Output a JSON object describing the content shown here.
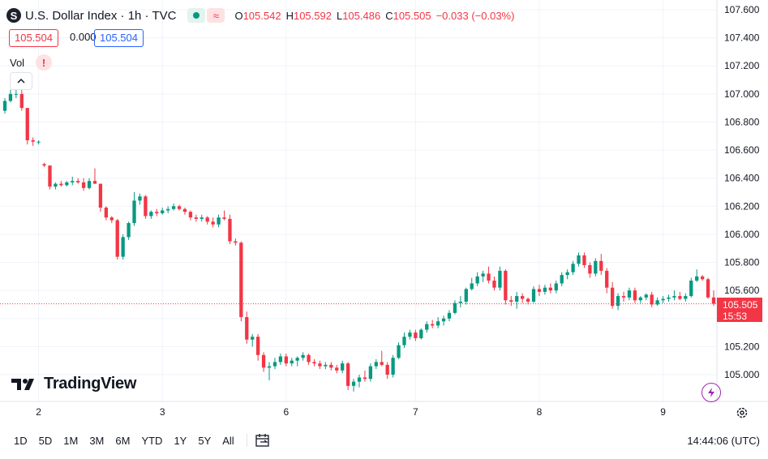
{
  "header": {
    "symbol_icon": "S",
    "title": "U.S. Dollar Index · 1h · TVC",
    "wave_icon": "≈",
    "ohlc": [
      {
        "k": "O",
        "v": "105.542"
      },
      {
        "k": "H",
        "v": "105.592"
      },
      {
        "k": "L",
        "v": "105.486"
      },
      {
        "k": "C",
        "v": "105.505"
      },
      {
        "k": "",
        "v": "−0.033 (−0.03%)"
      }
    ]
  },
  "quote": {
    "bid": "105.504",
    "spread": "0.000",
    "ask": "105.504"
  },
  "volume": {
    "label": "Vol",
    "warning": "!"
  },
  "logo_text": "TradingView",
  "last_price": {
    "price": "105.505",
    "countdown": "15:53"
  },
  "timeframes": [
    "1D",
    "5D",
    "1M",
    "3M",
    "6M",
    "YTD",
    "1Y",
    "5Y",
    "All"
  ],
  "clock": "14:44:06 (UTC)",
  "colors": {
    "up": "#089981",
    "down": "#f23645",
    "grid": "#f0f3fa"
  },
  "chart_data": {
    "type": "candlestick",
    "y_ticks": [
      "107.600",
      "107.400",
      "107.200",
      "107.000",
      "106.800",
      "106.600",
      "106.400",
      "106.200",
      "106.000",
      "105.800",
      "105.600",
      "105.400",
      "105.200",
      "105.000"
    ],
    "ylim": [
      104.87,
      107.65
    ],
    "x_ticks": [
      {
        "label": "2",
        "index": 6
      },
      {
        "label": "3",
        "index": 28
      },
      {
        "label": "6",
        "index": 50
      },
      {
        "label": "7",
        "index": 73
      },
      {
        "label": "8",
        "index": 95
      },
      {
        "label": "9",
        "index": 117
      }
    ],
    "last_value": 105.505,
    "candles": [
      [
        106.88,
        106.97,
        106.86,
        106.95
      ],
      [
        106.95,
        107.03,
        106.94,
        107.0
      ],
      [
        107.0,
        107.03,
        106.97,
        107.0
      ],
      [
        107.0,
        107.04,
        106.88,
        106.9
      ],
      [
        106.9,
        106.9,
        106.64,
        106.67
      ],
      [
        106.67,
        106.69,
        106.63,
        106.66
      ],
      [
        106.66,
        106.67,
        106.64,
        106.66
      ],
      [
        106.5,
        106.51,
        106.48,
        106.49
      ],
      [
        106.49,
        106.49,
        106.32,
        106.34
      ],
      [
        106.34,
        106.37,
        106.32,
        106.36
      ],
      [
        106.36,
        106.38,
        106.34,
        106.35
      ],
      [
        106.35,
        106.38,
        106.34,
        106.37
      ],
      [
        106.37,
        106.41,
        106.35,
        106.38
      ],
      [
        106.38,
        106.4,
        106.36,
        106.37
      ],
      [
        106.37,
        106.4,
        106.31,
        106.33
      ],
      [
        106.33,
        106.4,
        106.32,
        106.38
      ],
      [
        106.38,
        106.47,
        106.36,
        106.36
      ],
      [
        106.36,
        106.36,
        106.16,
        106.19
      ],
      [
        106.19,
        106.2,
        106.1,
        106.12
      ],
      [
        106.12,
        106.13,
        106.08,
        106.1
      ],
      [
        106.1,
        106.11,
        105.82,
        105.84
      ],
      [
        105.84,
        106.0,
        105.82,
        105.98
      ],
      [
        105.98,
        106.09,
        105.96,
        106.08
      ],
      [
        106.08,
        106.3,
        106.06,
        106.24
      ],
      [
        106.24,
        106.29,
        106.21,
        106.27
      ],
      [
        106.27,
        106.28,
        106.11,
        106.13
      ],
      [
        106.13,
        106.17,
        106.11,
        106.16
      ],
      [
        106.16,
        106.18,
        106.13,
        106.15
      ],
      [
        106.15,
        106.19,
        106.14,
        106.17
      ],
      [
        106.17,
        106.2,
        106.15,
        106.18
      ],
      [
        106.18,
        106.22,
        106.17,
        106.2
      ],
      [
        106.2,
        106.21,
        106.17,
        106.18
      ],
      [
        106.18,
        106.19,
        106.14,
        106.16
      ],
      [
        106.16,
        106.17,
        106.1,
        106.12
      ],
      [
        106.12,
        106.14,
        106.09,
        106.11
      ],
      [
        106.11,
        106.14,
        106.09,
        106.12
      ],
      [
        106.12,
        106.13,
        106.07,
        106.09
      ],
      [
        106.09,
        106.12,
        106.05,
        106.07
      ],
      [
        106.07,
        106.14,
        106.05,
        106.12
      ],
      [
        106.12,
        106.17,
        106.1,
        106.11
      ],
      [
        106.11,
        106.14,
        105.93,
        105.95
      ],
      [
        105.95,
        105.97,
        105.92,
        105.94
      ],
      [
        105.94,
        105.95,
        105.38,
        105.41
      ],
      [
        105.41,
        105.45,
        105.22,
        105.25
      ],
      [
        105.25,
        105.29,
        105.2,
        105.27
      ],
      [
        105.27,
        105.29,
        105.1,
        105.14
      ],
      [
        105.14,
        105.16,
        105.02,
        105.05
      ],
      [
        105.05,
        105.09,
        104.96,
        105.06
      ],
      [
        105.06,
        105.12,
        105.04,
        105.09
      ],
      [
        105.09,
        105.15,
        105.07,
        105.13
      ],
      [
        105.13,
        105.15,
        105.06,
        105.08
      ],
      [
        105.08,
        105.12,
        105.06,
        105.1
      ],
      [
        105.1,
        105.13,
        105.06,
        105.12
      ],
      [
        105.12,
        105.16,
        105.1,
        105.14
      ],
      [
        105.14,
        105.15,
        105.07,
        105.09
      ],
      [
        105.09,
        105.11,
        105.06,
        105.08
      ],
      [
        105.08,
        105.1,
        105.04,
        105.06
      ],
      [
        105.06,
        105.09,
        105.04,
        105.07
      ],
      [
        105.07,
        105.09,
        105.03,
        105.05
      ],
      [
        105.05,
        105.07,
        105.01,
        105.03
      ],
      [
        105.03,
        105.1,
        105.01,
        105.08
      ],
      [
        105.08,
        105.09,
        104.89,
        104.92
      ],
      [
        104.92,
        104.97,
        104.88,
        104.95
      ],
      [
        104.95,
        105.0,
        104.91,
        104.98
      ],
      [
        104.98,
        105.03,
        104.95,
        104.97
      ],
      [
        104.97,
        105.08,
        104.95,
        105.06
      ],
      [
        105.06,
        105.11,
        105.04,
        105.09
      ],
      [
        105.09,
        105.17,
        105.06,
        105.07
      ],
      [
        105.07,
        105.09,
        104.97,
        105.0
      ],
      [
        105.0,
        105.14,
        104.98,
        105.12
      ],
      [
        105.12,
        105.23,
        105.11,
        105.21
      ],
      [
        105.21,
        105.3,
        105.19,
        105.27
      ],
      [
        105.27,
        105.32,
        105.25,
        105.3
      ],
      [
        105.3,
        105.32,
        105.24,
        105.26
      ],
      [
        105.26,
        105.33,
        105.25,
        105.32
      ],
      [
        105.32,
        105.38,
        105.3,
        105.36
      ],
      [
        105.36,
        105.39,
        105.33,
        105.35
      ],
      [
        105.35,
        105.41,
        105.33,
        105.38
      ],
      [
        105.38,
        105.42,
        105.35,
        105.4
      ],
      [
        105.4,
        105.46,
        105.38,
        105.44
      ],
      [
        105.44,
        105.53,
        105.43,
        105.51
      ],
      [
        105.51,
        105.56,
        105.48,
        105.52
      ],
      [
        105.52,
        105.62,
        105.5,
        105.61
      ],
      [
        105.61,
        105.69,
        105.6,
        105.65
      ],
      [
        105.65,
        105.73,
        105.63,
        105.7
      ],
      [
        105.7,
        105.74,
        105.66,
        105.72
      ],
      [
        105.72,
        105.77,
        105.65,
        105.67
      ],
      [
        105.67,
        105.7,
        105.6,
        105.62
      ],
      [
        105.62,
        105.77,
        105.6,
        105.74
      ],
      [
        105.74,
        105.75,
        105.5,
        105.53
      ],
      [
        105.53,
        105.56,
        105.49,
        105.52
      ],
      [
        105.52,
        105.59,
        105.47,
        105.56
      ],
      [
        105.56,
        105.58,
        105.51,
        105.54
      ],
      [
        105.54,
        105.55,
        105.5,
        105.52
      ],
      [
        105.52,
        105.63,
        105.51,
        105.61
      ],
      [
        105.61,
        105.64,
        105.56,
        105.59
      ],
      [
        105.59,
        105.64,
        105.57,
        105.62
      ],
      [
        105.62,
        105.65,
        105.58,
        105.6
      ],
      [
        105.6,
        105.67,
        105.58,
        105.65
      ],
      [
        105.65,
        105.73,
        105.63,
        105.71
      ],
      [
        105.71,
        105.75,
        105.68,
        105.73
      ],
      [
        105.73,
        105.81,
        105.71,
        105.79
      ],
      [
        105.79,
        105.87,
        105.77,
        105.85
      ],
      [
        105.85,
        105.87,
        105.76,
        105.78
      ],
      [
        105.78,
        105.8,
        105.69,
        105.72
      ],
      [
        105.72,
        105.83,
        105.7,
        105.81
      ],
      [
        105.81,
        105.86,
        105.71,
        105.74
      ],
      [
        105.74,
        105.76,
        105.58,
        105.62
      ],
      [
        105.62,
        105.66,
        105.47,
        105.49
      ],
      [
        105.49,
        105.58,
        105.46,
        105.56
      ],
      [
        105.56,
        105.59,
        105.52,
        105.55
      ],
      [
        105.55,
        105.62,
        105.53,
        105.6
      ],
      [
        105.6,
        105.62,
        105.51,
        105.53
      ],
      [
        105.53,
        105.56,
        105.51,
        105.55
      ],
      [
        105.55,
        105.58,
        105.53,
        105.57
      ],
      [
        105.57,
        105.59,
        105.48,
        105.5
      ],
      [
        105.5,
        105.55,
        105.49,
        105.53
      ],
      [
        105.53,
        105.56,
        105.51,
        105.54
      ],
      [
        105.54,
        105.57,
        105.52,
        105.55
      ],
      [
        105.55,
        105.6,
        105.53,
        105.56
      ],
      [
        105.56,
        105.59,
        105.53,
        105.54
      ],
      [
        105.54,
        105.58,
        105.52,
        105.56
      ],
      [
        105.56,
        105.69,
        105.55,
        105.67
      ],
      [
        105.67,
        105.75,
        105.66,
        105.7
      ],
      [
        105.7,
        105.71,
        105.67,
        105.68
      ],
      [
        105.68,
        105.69,
        105.54,
        105.55
      ],
      [
        105.55,
        105.6,
        105.49,
        105.505
      ]
    ]
  }
}
